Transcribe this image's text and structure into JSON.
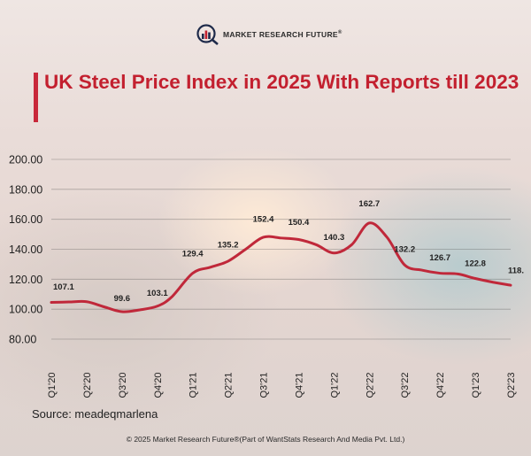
{
  "logo": {
    "text": "MARKET RESEARCH FUTURE",
    "mark": "®"
  },
  "title": "UK Steel Price Index in 2025 With Reports till 2023",
  "source": "Source: meadeqmarlena",
  "footer": "© 2025 Market Research Future®(Part of WantStats Research And Media Pvt. Ltd.)",
  "colors": {
    "accent": "#c3202f",
    "line": "#c0283a"
  },
  "chart_data": {
    "type": "line",
    "title": "UK Steel Price Index in 2025 With Reports till 2023",
    "xlabel": "",
    "ylabel": "",
    "ylim": [
      80,
      200
    ],
    "yticks": [
      "200.00",
      "180.00",
      "160.00",
      "140.00",
      "120.00",
      "100.00",
      "80.00"
    ],
    "ytick_values": [
      200,
      180,
      160,
      140,
      120,
      100,
      80
    ],
    "grid": "horizontal",
    "categories": [
      "Q1'20",
      "Q2'20",
      "Q3'20",
      "Q4'20",
      "Q1'21",
      "Q2'21",
      "Q3'21",
      "Q4'21",
      "Q1'22",
      "Q2'22",
      "Q3'22",
      "Q4'22",
      "Q1'23",
      "Q2'23"
    ],
    "series": [
      {
        "name": "UK Steel Price Index",
        "values": [
          107.1,
          104.5,
          99.6,
          103.1,
          129.4,
          135.2,
          152.4,
          150.4,
          140.3,
          162.7,
          132.2,
          126.7,
          122.8,
          118.0
        ]
      }
    ],
    "labels": [
      "107.1",
      "",
      "99.6",
      "103.1",
      "129.4",
      "135.2",
      "152.4",
      "150.4",
      "140.3",
      "162.7",
      "132.2",
      "126.7",
      "122.8",
      "118."
    ],
    "curve": [
      [
        0,
        104.5
      ],
      [
        0.5,
        104.8
      ],
      [
        1,
        105
      ],
      [
        1.5,
        101.5
      ],
      [
        2,
        98.3
      ],
      [
        2.5,
        99.5
      ],
      [
        3,
        102
      ],
      [
        3.4,
        108
      ],
      [
        4,
        124
      ],
      [
        4.5,
        128
      ],
      [
        5,
        132
      ],
      [
        5.5,
        140
      ],
      [
        6,
        148
      ],
      [
        6.5,
        147.5
      ],
      [
        7,
        146.5
      ],
      [
        7.5,
        143
      ],
      [
        8,
        137.5
      ],
      [
        8.5,
        143
      ],
      [
        9,
        157.5
      ],
      [
        9.5,
        148
      ],
      [
        10,
        129.5
      ],
      [
        10.5,
        126
      ],
      [
        11,
        124
      ],
      [
        11.5,
        123.5
      ],
      [
        12,
        120.5
      ],
      [
        12.5,
        118
      ],
      [
        13,
        116
      ]
    ]
  }
}
